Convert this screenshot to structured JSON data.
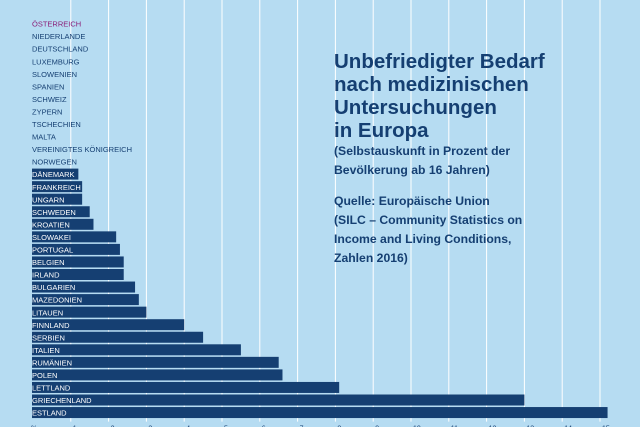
{
  "title_lines": [
    "Unbefriedigter Bedarf",
    "nach medizinischen",
    "Untersuchungen",
    "in Europa"
  ],
  "subtitle_lines": [
    "(Selbstauskunft in Prozent der",
    "Bevölkerung ab 16 Jahren)"
  ],
  "source_lines": [
    "Quelle: Europäische Union",
    "(SILC – Community Statistics on",
    "Income and Living Conditions,",
    "Zahlen 2016)"
  ],
  "colors": {
    "background": "#b6dcf2",
    "bar": "#153f72",
    "grid": "#ffffff",
    "label": "#153f72",
    "highlight_label": "#8a1e78",
    "bar_label": "#ffffff"
  },
  "chart_data": {
    "type": "bar",
    "orientation": "horizontal",
    "categories": [
      "ÖSTERREICH",
      "NIEDERLANDE",
      "DEUTSCHLAND",
      "LUXEMBURG",
      "SLOWENIEN",
      "SPANIEN",
      "SCHWEIZ",
      "ZYPERN",
      "TSCHECHIEN",
      "MALTA",
      "VEREINIGTES KÖNIGREICH",
      "NORWEGEN",
      "DÄNEMARK",
      "FRANKREICH",
      "UNGARN",
      "SCHWEDEN",
      "KROATIEN",
      "SLOWAKEI",
      "PORTUGAL",
      "BELGIEN",
      "IRLAND",
      "BULGARIEN",
      "MAZEDONIEN",
      "LITAUEN",
      "FINNLAND",
      "SERBIEN",
      "ITALIEN",
      "RUMÄNIEN",
      "POLEN",
      "LETTLAND",
      "GRIECHENLAND",
      "ESTLAND"
    ],
    "values": [
      0.0,
      0.0,
      0.0,
      0.0,
      0.0,
      0.0,
      0.0,
      0.0,
      0.0,
      0.0,
      0.0,
      0.0,
      1.2,
      1.3,
      1.3,
      1.5,
      1.6,
      2.2,
      2.3,
      2.4,
      2.4,
      2.7,
      2.8,
      3.0,
      4.0,
      4.5,
      5.5,
      6.5,
      6.6,
      8.1,
      13.0,
      15.2
    ],
    "highlight": [
      "ÖSTERREICH"
    ],
    "x_ticks": [
      "%",
      "1",
      "2",
      "3",
      "4",
      "5",
      "6",
      "7",
      "8",
      "9",
      "10",
      "11",
      "12",
      "13",
      "14",
      "15"
    ],
    "xlim": [
      0,
      15
    ],
    "grid": true
  }
}
